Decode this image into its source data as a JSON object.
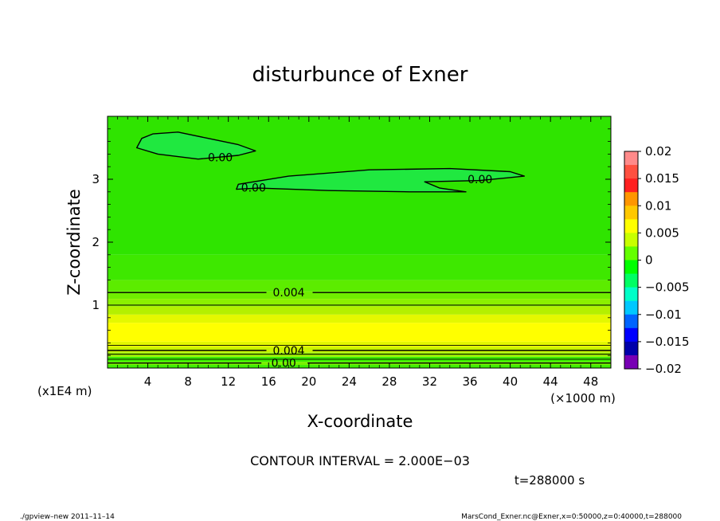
{
  "chart_data": {
    "type": "heatmap",
    "title": "disturbunce of Exner",
    "xlabel": "X-coordinate",
    "ylabel": "Z-coordinate",
    "x_unit_label": "(×1000 m)",
    "y_unit_label": "(x1E4 m)",
    "xlim": [
      0,
      50
    ],
    "ylim": [
      0,
      4
    ],
    "x_ticks": [
      4,
      8,
      12,
      16,
      20,
      24,
      28,
      32,
      36,
      40,
      44,
      48
    ],
    "y_ticks": [
      1,
      2,
      3
    ],
    "colorbar": {
      "range": [
        -0.02,
        0.02
      ],
      "tick_labels": [
        "0.02",
        "0.015",
        "0.01",
        "0.005",
        "0",
        "−0.005",
        "−0.01",
        "−0.015",
        "−0.02"
      ],
      "colors": [
        "#ff8a8a",
        "#ff5040",
        "#ff2020",
        "#ff9600",
        "#ffc800",
        "#ffff00",
        "#c8ff00",
        "#64ff00",
        "#00ff00",
        "#00ff64",
        "#00ffc8",
        "#00c8ff",
        "#0064ff",
        "#0000ff",
        "#0000aa",
        "#7800b4"
      ]
    },
    "layers": [
      {
        "z_top": 0.05,
        "color": "#3cee00"
      },
      {
        "z_top": 0.1,
        "color": "#78f000"
      },
      {
        "z_top": 0.18,
        "color": "#3cee00"
      },
      {
        "z_top": 0.25,
        "color": "#9cf000"
      },
      {
        "z_top": 0.33,
        "color": "#c8f400"
      },
      {
        "z_top": 0.42,
        "color": "#e4f800"
      },
      {
        "z_top": 0.72,
        "color": "#ffff00"
      },
      {
        "z_top": 0.85,
        "color": "#e4f800"
      },
      {
        "z_top": 0.98,
        "color": "#b4f000"
      },
      {
        "z_top": 1.1,
        "color": "#8cf000"
      },
      {
        "z_top": 1.22,
        "color": "#70ee00"
      },
      {
        "z_top": 1.4,
        "color": "#5cec00"
      },
      {
        "z_top": 1.8,
        "color": "#3ee800"
      },
      {
        "z_top": 4.0,
        "color": "#2fe400"
      }
    ],
    "contours": [
      {
        "label": "0.004",
        "z": 1.2,
        "label_x": 18
      },
      {
        "label": "0.004",
        "z": 0.28,
        "label_x": 18
      },
      {
        "label": "0.00",
        "z": 0.08,
        "label_x": 17.5
      }
    ],
    "closed_contours": [
      {
        "label": "0.00",
        "label_x": 11.2,
        "label_z": 3.35
      },
      {
        "label": "0.00",
        "label_x": 14.5,
        "label_z": 2.87
      },
      {
        "label": "0.00",
        "label_x": 37.0,
        "label_z": 3.0
      }
    ]
  },
  "footer": {
    "contour_interval": "CONTOUR INTERVAL = 2.000E−03",
    "time": "t=288000 s",
    "program": "./gpview–new  2011–11–14",
    "source": "MarsCond_Exner.nc@Exner,x=0:50000,z=0:40000,t=288000"
  }
}
